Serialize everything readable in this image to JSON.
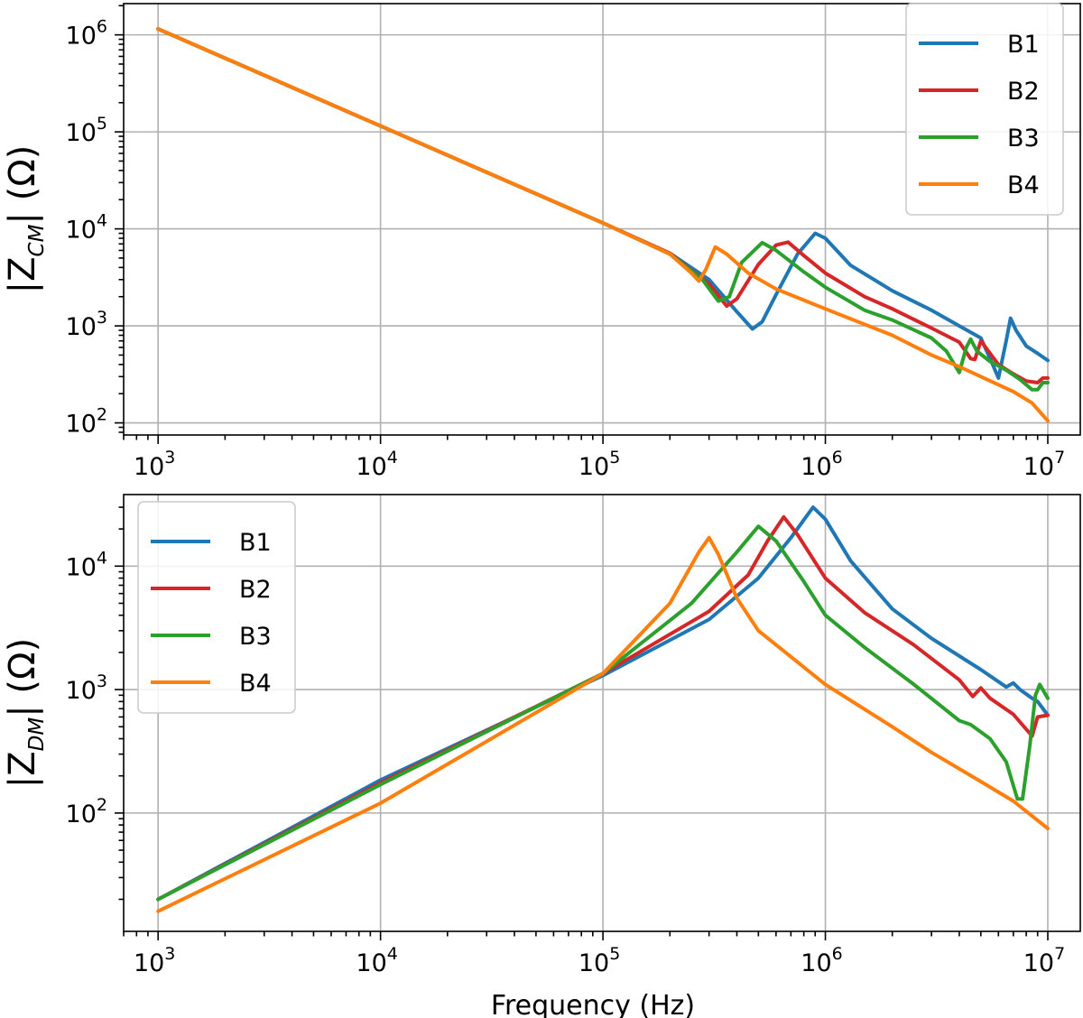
{
  "chart_data": [
    {
      "type": "line",
      "xscale": "log",
      "yscale": "log",
      "xlim": [
        700,
        14000000
      ],
      "ylim": [
        75,
        2100000
      ],
      "xticks": [
        1000,
        10000,
        100000,
        1000000,
        10000000
      ],
      "xtick_labels": [
        {
          "base": "10",
          "exp": "3"
        },
        {
          "base": "10",
          "exp": "4"
        },
        {
          "base": "10",
          "exp": "5"
        },
        {
          "base": "10",
          "exp": "6"
        },
        {
          "base": "10",
          "exp": "7"
        }
      ],
      "yticks": [
        100,
        1000,
        10000,
        100000,
        1000000
      ],
      "ytick_labels": [
        {
          "base": "10",
          "exp": "2"
        },
        {
          "base": "10",
          "exp": "3"
        },
        {
          "base": "10",
          "exp": "4"
        },
        {
          "base": "10",
          "exp": "5"
        },
        {
          "base": "10",
          "exp": "6"
        }
      ],
      "ylabel": {
        "prefix": "|Z",
        "sub": "CM",
        "suffix": "| (Ω)"
      },
      "xlabel": "",
      "grid": true,
      "legend": "top-right",
      "series": [
        {
          "name": "B1",
          "color": "#1f77b4",
          "points": [
            [
              1000,
              1150000
            ],
            [
              10000,
              115000
            ],
            [
              100000,
              11500
            ],
            [
              200000,
              5600
            ],
            [
              300000,
              3000
            ],
            [
              400000,
              1400
            ],
            [
              470000,
              930
            ],
            [
              520000,
              1100
            ],
            [
              600000,
              2100
            ],
            [
              750000,
              5500
            ],
            [
              900000,
              9000
            ],
            [
              1000000,
              8000
            ],
            [
              1300000,
              4200
            ],
            [
              2000000,
              2300
            ],
            [
              3000000,
              1450
            ],
            [
              4000000,
              1000
            ],
            [
              5000000,
              750
            ],
            [
              5600000,
              420
            ],
            [
              6000000,
              290
            ],
            [
              6500000,
              700
            ],
            [
              6800000,
              1200
            ],
            [
              7200000,
              900
            ],
            [
              8000000,
              620
            ],
            [
              9000000,
              520
            ],
            [
              10000000,
              440
            ]
          ]
        },
        {
          "name": "B2",
          "color": "#d62728",
          "points": [
            [
              1000,
              1150000
            ],
            [
              10000,
              115000
            ],
            [
              100000,
              11500
            ],
            [
              200000,
              5600
            ],
            [
              300000,
              2700
            ],
            [
              360000,
              1600
            ],
            [
              400000,
              1900
            ],
            [
              500000,
              4300
            ],
            [
              600000,
              6800
            ],
            [
              680000,
              7300
            ],
            [
              800000,
              5300
            ],
            [
              1000000,
              3500
            ],
            [
              1500000,
              2000
            ],
            [
              2000000,
              1500
            ],
            [
              3000000,
              950
            ],
            [
              4000000,
              680
            ],
            [
              4500000,
              460
            ],
            [
              4700000,
              450
            ],
            [
              5000000,
              700
            ],
            [
              5500000,
              520
            ],
            [
              6000000,
              400
            ],
            [
              7000000,
              320
            ],
            [
              8000000,
              270
            ],
            [
              9000000,
              260
            ],
            [
              9500000,
              290
            ],
            [
              10000000,
              290
            ]
          ]
        },
        {
          "name": "B3",
          "color": "#2ca02c",
          "points": [
            [
              1000,
              1150000
            ],
            [
              10000,
              115000
            ],
            [
              100000,
              11500
            ],
            [
              200000,
              5500
            ],
            [
              280000,
              3000
            ],
            [
              330000,
              1800
            ],
            [
              370000,
              2000
            ],
            [
              420000,
              4500
            ],
            [
              520000,
              7200
            ],
            [
              600000,
              6000
            ],
            [
              800000,
              3600
            ],
            [
              1000000,
              2500
            ],
            [
              1500000,
              1450
            ],
            [
              2000000,
              1150
            ],
            [
              3000000,
              750
            ],
            [
              3500000,
              550
            ],
            [
              4000000,
              330
            ],
            [
              4300000,
              600
            ],
            [
              4500000,
              730
            ],
            [
              4800000,
              550
            ],
            [
              5500000,
              430
            ],
            [
              6500000,
              350
            ],
            [
              7500000,
              280
            ],
            [
              8500000,
              220
            ],
            [
              9000000,
              220
            ],
            [
              9500000,
              260
            ],
            [
              10000000,
              260
            ]
          ]
        },
        {
          "name": "B4",
          "color": "#ff7f0e",
          "points": [
            [
              1000,
              1150000
            ],
            [
              10000,
              115000
            ],
            [
              100000,
              11500
            ],
            [
              200000,
              5500
            ],
            [
              250000,
              3500
            ],
            [
              270000,
              2900
            ],
            [
              290000,
              3800
            ],
            [
              320000,
              6500
            ],
            [
              360000,
              5500
            ],
            [
              450000,
              3500
            ],
            [
              600000,
              2400
            ],
            [
              1000000,
              1500
            ],
            [
              2000000,
              800
            ],
            [
              3000000,
              500
            ],
            [
              4000000,
              380
            ],
            [
              5000000,
              300
            ],
            [
              7000000,
              210
            ],
            [
              8500000,
              160
            ],
            [
              10000000,
              105
            ]
          ]
        }
      ]
    },
    {
      "type": "line",
      "xscale": "log",
      "yscale": "log",
      "xlim": [
        700,
        14000000
      ],
      "ylim": [
        11,
        38000
      ],
      "xticks": [
        1000,
        10000,
        100000,
        1000000,
        10000000
      ],
      "xtick_labels": [
        {
          "base": "10",
          "exp": "3"
        },
        {
          "base": "10",
          "exp": "4"
        },
        {
          "base": "10",
          "exp": "5"
        },
        {
          "base": "10",
          "exp": "6"
        },
        {
          "base": "10",
          "exp": "7"
        }
      ],
      "yticks": [
        100,
        1000,
        10000
      ],
      "ytick_labels": [
        {
          "base": "10",
          "exp": "2"
        },
        {
          "base": "10",
          "exp": "3"
        },
        {
          "base": "10",
          "exp": "4"
        }
      ],
      "ylabel": {
        "prefix": "|Z",
        "sub": "DM",
        "suffix": "| (Ω)"
      },
      "xlabel": "Frequency (Hz)",
      "grid": true,
      "legend": "top-left",
      "series": [
        {
          "name": "B1",
          "color": "#1f77b4",
          "points": [
            [
              1000,
              20
            ],
            [
              10000,
              185
            ],
            [
              100000,
              1300
            ],
            [
              300000,
              3700
            ],
            [
              500000,
              8000
            ],
            [
              700000,
              17000
            ],
            [
              880000,
              30000
            ],
            [
              1000000,
              24000
            ],
            [
              1300000,
              11000
            ],
            [
              2000000,
              4500
            ],
            [
              3000000,
              2600
            ],
            [
              5000000,
              1450
            ],
            [
              6500000,
              1050
            ],
            [
              7000000,
              1130
            ],
            [
              7500000,
              1000
            ],
            [
              8500000,
              850
            ],
            [
              9000000,
              800
            ],
            [
              10000000,
              620
            ]
          ]
        },
        {
          "name": "B2",
          "color": "#d62728",
          "points": [
            [
              1000,
              20
            ],
            [
              10000,
              175
            ],
            [
              100000,
              1350
            ],
            [
              300000,
              4300
            ],
            [
              450000,
              8500
            ],
            [
              550000,
              16000
            ],
            [
              650000,
              25000
            ],
            [
              750000,
              18000
            ],
            [
              1000000,
              8000
            ],
            [
              1500000,
              4200
            ],
            [
              2500000,
              2300
            ],
            [
              4000000,
              1200
            ],
            [
              4600000,
              880
            ],
            [
              5000000,
              1030
            ],
            [
              5500000,
              850
            ],
            [
              7000000,
              630
            ],
            [
              8500000,
              420
            ],
            [
              9000000,
              600
            ],
            [
              10000000,
              620
            ]
          ]
        },
        {
          "name": "B3",
          "color": "#2ca02c",
          "points": [
            [
              1000,
              20
            ],
            [
              10000,
              170
            ],
            [
              100000,
              1350
            ],
            [
              250000,
              5000
            ],
            [
              400000,
              13000
            ],
            [
              500000,
              21000
            ],
            [
              600000,
              16000
            ],
            [
              800000,
              7500
            ],
            [
              1000000,
              4000
            ],
            [
              1500000,
              2200
            ],
            [
              2500000,
              1100
            ],
            [
              4000000,
              560
            ],
            [
              4500000,
              520
            ],
            [
              5500000,
              400
            ],
            [
              6500000,
              260
            ],
            [
              7300000,
              130
            ],
            [
              7700000,
              130
            ],
            [
              8300000,
              350
            ],
            [
              8800000,
              900
            ],
            [
              9200000,
              1100
            ],
            [
              10000000,
              850
            ]
          ]
        },
        {
          "name": "B4",
          "color": "#ff7f0e",
          "points": [
            [
              1000,
              16
            ],
            [
              10000,
              120
            ],
            [
              100000,
              1350
            ],
            [
              200000,
              5000
            ],
            [
              270000,
              13000
            ],
            [
              300000,
              17000
            ],
            [
              330000,
              12500
            ],
            [
              400000,
              5500
            ],
            [
              500000,
              3000
            ],
            [
              1000000,
              1100
            ],
            [
              2000000,
              500
            ],
            [
              3000000,
              310
            ],
            [
              5000000,
              180
            ],
            [
              7000000,
              125
            ],
            [
              10000000,
              75
            ]
          ]
        }
      ]
    }
  ]
}
